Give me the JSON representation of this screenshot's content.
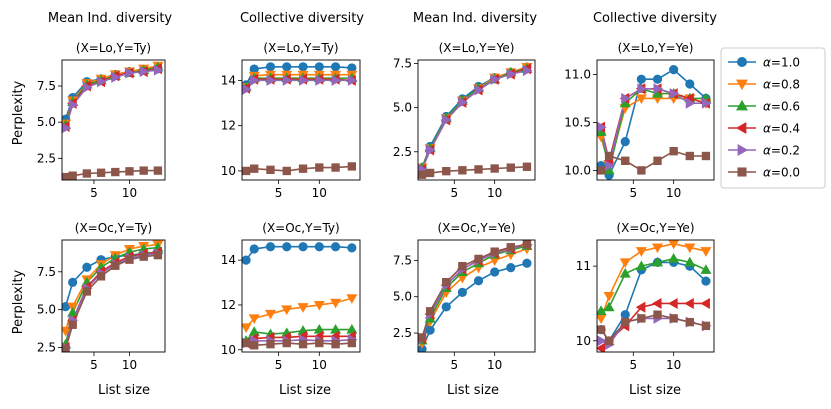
{
  "column_titles": [
    "Mean Ind. diversity",
    "Collective diversity",
    "Mean Ind. diversity",
    "Collective diversity"
  ],
  "shared": {
    "ylabel": "Perplexity",
    "xlabel": "List size",
    "alpha_label": "α"
  },
  "legend": [
    {
      "label": "=1.0",
      "color": "#1f77b4",
      "marker": "circle"
    },
    {
      "label": "=0.8",
      "color": "#ff7f0e",
      "marker": "triangle-down"
    },
    {
      "label": "=0.6",
      "color": "#2ca02c",
      "marker": "triangle-up"
    },
    {
      "label": "=0.4",
      "color": "#d62728",
      "marker": "triangle-left"
    },
    {
      "label": "=0.2",
      "color": "#9467bd",
      "marker": "triangle-right"
    },
    {
      "label": "=0.0",
      "color": "#8c564b",
      "marker": "square"
    }
  ],
  "chart_data": [
    {
      "type": "line",
      "title": "(X=Lo,Y=Ty)",
      "x": [
        1,
        2,
        4,
        6,
        8,
        10,
        12,
        14
      ],
      "xticks": [
        5,
        10
      ],
      "xlim": [
        0.5,
        15
      ],
      "ylim": [
        1.0,
        9.3
      ],
      "yticks": [
        2.5,
        5.0,
        7.5
      ],
      "yticklabels": [
        "2.5",
        "5.0",
        "7.5"
      ],
      "series": [
        {
          "name": "α=1.0",
          "values": [
            5.2,
            6.7,
            7.8,
            8.0,
            8.3,
            8.5,
            8.6,
            8.7
          ]
        },
        {
          "name": "α=0.8",
          "values": [
            4.9,
            6.5,
            7.7,
            8.0,
            8.3,
            8.5,
            8.7,
            8.9
          ]
        },
        {
          "name": "α=0.6",
          "values": [
            4.8,
            6.4,
            7.6,
            7.9,
            8.2,
            8.4,
            8.6,
            8.8
          ]
        },
        {
          "name": "α=0.4",
          "values": [
            4.7,
            6.3,
            7.5,
            7.8,
            8.2,
            8.4,
            8.5,
            8.7
          ]
        },
        {
          "name": "α=0.2",
          "values": [
            4.6,
            6.2,
            7.4,
            7.8,
            8.1,
            8.4,
            8.5,
            8.6
          ]
        },
        {
          "name": "α=0.0",
          "values": [
            1.2,
            1.3,
            1.45,
            1.5,
            1.55,
            1.6,
            1.65,
            1.65
          ]
        }
      ]
    },
    {
      "type": "line",
      "title": "(X=Lo,Y=Ty)",
      "x": [
        1,
        2,
        4,
        6,
        8,
        10,
        12,
        14
      ],
      "xticks": [
        5,
        10
      ],
      "xlim": [
        0.5,
        15
      ],
      "ylim": [
        9.6,
        14.9
      ],
      "yticks": [
        10,
        12,
        14
      ],
      "yticklabels": [
        "10",
        "12",
        "14"
      ],
      "series": [
        {
          "name": "α=1.0",
          "values": [
            13.8,
            14.5,
            14.6,
            14.6,
            14.6,
            14.6,
            14.6,
            14.55
          ]
        },
        {
          "name": "α=0.8",
          "values": [
            13.7,
            14.2,
            14.25,
            14.25,
            14.25,
            14.25,
            14.25,
            14.25
          ]
        },
        {
          "name": "α=0.6",
          "values": [
            13.7,
            14.1,
            14.1,
            14.1,
            14.1,
            14.1,
            14.1,
            14.1
          ]
        },
        {
          "name": "α=0.4",
          "values": [
            13.65,
            14.05,
            14.05,
            14.05,
            14.05,
            14.05,
            14.05,
            14.0
          ]
        },
        {
          "name": "α=0.2",
          "values": [
            13.6,
            14.0,
            14.0,
            14.0,
            14.0,
            14.0,
            14.0,
            14.0
          ]
        },
        {
          "name": "α=0.0",
          "values": [
            10.0,
            10.1,
            10.05,
            10.0,
            10.1,
            10.15,
            10.15,
            10.2
          ]
        }
      ]
    },
    {
      "type": "line",
      "title": "(X=Lo,Y=Ye)",
      "x": [
        1,
        2,
        4,
        6,
        8,
        10,
        12,
        14
      ],
      "xticks": [
        5,
        10
      ],
      "xlim": [
        0.5,
        15
      ],
      "ylim": [
        0.9,
        7.7
      ],
      "yticks": [
        2.5,
        5.0,
        7.5
      ],
      "yticklabels": [
        "2.5",
        "5.0",
        "7.5"
      ],
      "series": [
        {
          "name": "α=1.0",
          "values": [
            1.6,
            2.8,
            4.5,
            5.5,
            6.2,
            6.7,
            7.0,
            7.3
          ]
        },
        {
          "name": "α=0.8",
          "values": [
            1.6,
            2.7,
            4.4,
            5.4,
            6.1,
            6.7,
            7.0,
            7.3
          ]
        },
        {
          "name": "α=0.6",
          "values": [
            1.6,
            2.7,
            4.4,
            5.4,
            6.1,
            6.6,
            7.0,
            7.2
          ]
        },
        {
          "name": "α=0.4",
          "values": [
            1.5,
            2.6,
            4.3,
            5.3,
            6.0,
            6.6,
            6.9,
            7.2
          ]
        },
        {
          "name": "α=0.2",
          "values": [
            1.5,
            2.6,
            4.3,
            5.3,
            6.0,
            6.6,
            6.9,
            7.1
          ]
        },
        {
          "name": "α=0.0",
          "values": [
            1.2,
            1.3,
            1.4,
            1.45,
            1.5,
            1.55,
            1.6,
            1.65
          ]
        }
      ]
    },
    {
      "type": "line",
      "title": "(X=Lo,Y=Ye)",
      "x": [
        1,
        2,
        4,
        6,
        8,
        10,
        12,
        14
      ],
      "xticks": [
        5,
        10
      ],
      "xlim": [
        0.5,
        15
      ],
      "ylim": [
        9.9,
        11.15
      ],
      "yticks": [
        10.0,
        10.5,
        11.0
      ],
      "yticklabels": [
        "10.0",
        "10.5",
        "11.0"
      ],
      "series": [
        {
          "name": "α=1.0",
          "values": [
            10.05,
            9.95,
            10.3,
            10.95,
            10.95,
            11.05,
            10.9,
            10.75
          ]
        },
        {
          "name": "α=0.8",
          "values": [
            10.35,
            10.05,
            10.65,
            10.75,
            10.75,
            10.75,
            10.75,
            10.7
          ]
        },
        {
          "name": "α=0.6",
          "values": [
            10.4,
            10.0,
            10.7,
            10.85,
            10.8,
            10.8,
            10.75,
            10.75
          ]
        },
        {
          "name": "α=0.4",
          "values": [
            10.45,
            10.1,
            10.75,
            10.85,
            10.85,
            10.8,
            10.75,
            10.7
          ]
        },
        {
          "name": "α=0.2",
          "values": [
            10.45,
            10.05,
            10.75,
            10.85,
            10.85,
            10.8,
            10.7,
            10.7
          ]
        },
        {
          "name": "α=0.0",
          "values": [
            10.0,
            10.15,
            10.1,
            10.0,
            10.1,
            10.2,
            10.15,
            10.15
          ]
        }
      ]
    },
    {
      "type": "line",
      "title": "(X=Oc,Y=Ty)",
      "x": [
        1,
        2,
        4,
        6,
        8,
        10,
        12,
        14
      ],
      "xticks": [
        5,
        10
      ],
      "xlim": [
        0.5,
        15
      ],
      "ylim": [
        2.2,
        9.6
      ],
      "yticks": [
        2.5,
        5.0,
        7.5
      ],
      "yticklabels": [
        "2.5",
        "5.0",
        "7.5"
      ],
      "series": [
        {
          "name": "α=1.0",
          "values": [
            5.2,
            6.8,
            7.8,
            8.3,
            8.5,
            8.6,
            8.7,
            8.8
          ]
        },
        {
          "name": "α=0.8",
          "values": [
            3.6,
            5.2,
            7.0,
            8.0,
            8.6,
            9.0,
            9.2,
            9.3
          ]
        },
        {
          "name": "α=0.6",
          "values": [
            2.7,
            4.8,
            6.8,
            7.8,
            8.4,
            8.8,
            9.0,
            9.1
          ]
        },
        {
          "name": "α=0.4",
          "values": [
            2.5,
            4.3,
            6.5,
            7.5,
            8.1,
            8.5,
            8.7,
            8.8
          ]
        },
        {
          "name": "α=0.2",
          "values": [
            2.5,
            4.3,
            6.4,
            7.4,
            8.0,
            8.4,
            8.6,
            8.7
          ]
        },
        {
          "name": "α=0.0",
          "values": [
            2.4,
            4.0,
            6.2,
            7.2,
            7.9,
            8.3,
            8.5,
            8.6
          ]
        }
      ]
    },
    {
      "type": "line",
      "title": "(X=Oc,Y=Ty)",
      "x": [
        1,
        2,
        4,
        6,
        8,
        10,
        12,
        14
      ],
      "xticks": [
        5,
        10
      ],
      "xlim": [
        0.5,
        15
      ],
      "ylim": [
        9.9,
        14.9
      ],
      "yticks": [
        10,
        12,
        14
      ],
      "yticklabels": [
        "10",
        "12",
        "14"
      ],
      "series": [
        {
          "name": "α=1.0",
          "values": [
            14.0,
            14.5,
            14.6,
            14.6,
            14.6,
            14.6,
            14.6,
            14.55
          ]
        },
        {
          "name": "α=0.8",
          "values": [
            11.0,
            11.4,
            11.6,
            11.8,
            11.9,
            12.0,
            12.1,
            12.3
          ]
        },
        {
          "name": "α=0.6",
          "values": [
            10.4,
            10.8,
            10.7,
            10.75,
            10.85,
            10.9,
            10.9,
            10.9
          ]
        },
        {
          "name": "α=0.4",
          "values": [
            10.3,
            10.5,
            10.55,
            10.55,
            10.6,
            10.6,
            10.6,
            10.6
          ]
        },
        {
          "name": "α=0.2",
          "values": [
            10.3,
            10.4,
            10.4,
            10.4,
            10.45,
            10.4,
            10.4,
            10.45
          ]
        },
        {
          "name": "α=0.0",
          "values": [
            10.3,
            10.2,
            10.25,
            10.3,
            10.25,
            10.3,
            10.25,
            10.3
          ]
        }
      ]
    },
    {
      "type": "line",
      "title": "(X=Oc,Y=Ye)",
      "x": [
        1,
        2,
        4,
        6,
        8,
        10,
        12,
        14
      ],
      "xticks": [
        5,
        10
      ],
      "xlim": [
        0.5,
        15
      ],
      "ylim": [
        1.2,
        8.9
      ],
      "yticks": [
        2.5,
        5.0,
        7.5
      ],
      "yticklabels": [
        "2.5",
        "5.0",
        "7.5"
      ],
      "series": [
        {
          "name": "α=1.0",
          "values": [
            1.4,
            2.7,
            4.3,
            5.3,
            6.1,
            6.7,
            7.0,
            7.3
          ]
        },
        {
          "name": "α=0.8",
          "values": [
            1.8,
            3.3,
            5.3,
            6.3,
            7.0,
            7.5,
            7.9,
            8.3
          ]
        },
        {
          "name": "α=0.6",
          "values": [
            2.0,
            3.5,
            5.6,
            6.7,
            7.3,
            7.9,
            8.2,
            8.5
          ]
        },
        {
          "name": "α=0.4",
          "values": [
            2.1,
            3.8,
            5.8,
            6.9,
            7.5,
            8.0,
            8.3,
            8.6
          ]
        },
        {
          "name": "α=0.2",
          "values": [
            2.1,
            3.8,
            5.8,
            6.9,
            7.5,
            8.0,
            8.3,
            8.6
          ]
        },
        {
          "name": "α=0.0",
          "values": [
            2.2,
            4.0,
            6.0,
            7.1,
            7.6,
            8.1,
            8.4,
            8.6
          ]
        }
      ]
    },
    {
      "type": "line",
      "title": "(X=Oc,Y=Ye)",
      "x": [
        1,
        2,
        4,
        6,
        8,
        10,
        12,
        14
      ],
      "xticks": [
        5,
        10
      ],
      "xlim": [
        0.5,
        15
      ],
      "ylim": [
        9.85,
        11.35
      ],
      "yticks": [
        10,
        11
      ],
      "yticklabels": [
        "10",
        "11"
      ],
      "series": [
        {
          "name": "α=1.0",
          "values": [
            10.15,
            10.0,
            10.35,
            10.95,
            11.05,
            11.05,
            11.0,
            10.8
          ]
        },
        {
          "name": "α=0.8",
          "values": [
            10.3,
            10.6,
            11.05,
            11.2,
            11.25,
            11.3,
            11.25,
            11.2
          ]
        },
        {
          "name": "α=0.6",
          "values": [
            10.4,
            10.45,
            10.9,
            11.0,
            11.05,
            11.1,
            11.05,
            10.95
          ]
        },
        {
          "name": "α=0.4",
          "values": [
            9.9,
            10.0,
            10.2,
            10.45,
            10.5,
            10.5,
            10.5,
            10.5
          ]
        },
        {
          "name": "α=0.2",
          "values": [
            10.0,
            9.95,
            10.25,
            10.3,
            10.3,
            10.3,
            10.25,
            10.2
          ]
        },
        {
          "name": "α=0.0",
          "values": [
            10.15,
            10.0,
            10.25,
            10.3,
            10.35,
            10.3,
            10.25,
            10.2
          ]
        }
      ]
    }
  ]
}
